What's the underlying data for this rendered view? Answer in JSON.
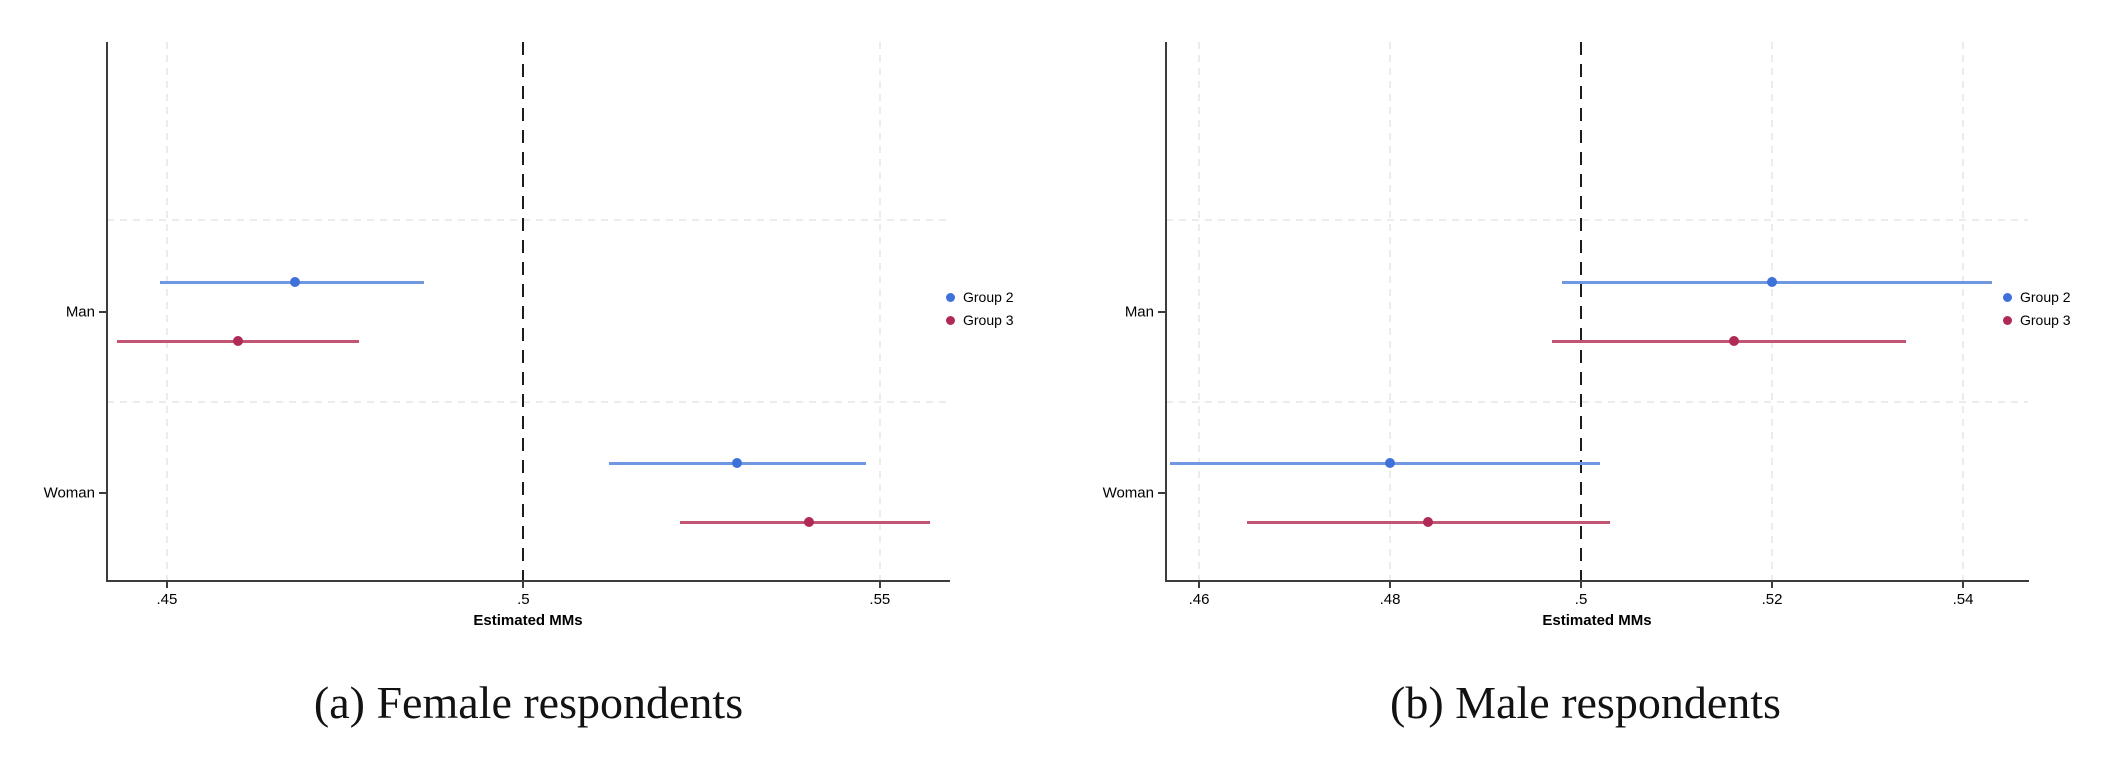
{
  "figure": {
    "background": "#ffffff",
    "refline_color": "#1c1c1c",
    "gridline_color": "#ececec"
  },
  "chart_data": [
    {
      "type": "scatter",
      "subtype": "horizontal-point-ci-coefplot",
      "caption": "(a) Female respondents",
      "title": "",
      "xlabel": "Estimated MMs",
      "ylabel": "",
      "categories": [
        "Man",
        "Woman"
      ],
      "xticks": [
        {
          "value": 0.45,
          "label": ".45"
        },
        {
          "value": 0.5,
          "label": ".5"
        },
        {
          "value": 0.55,
          "label": ".55"
        }
      ],
      "xlim": [
        0.4416,
        0.5597
      ],
      "refline": 0.5,
      "grid": true,
      "legend_position": "right",
      "series": [
        {
          "name": "Group 2",
          "marker_color": "#3e71d9",
          "line_color": "#6f97e2",
          "points": [
            {
              "category": "Man",
              "estimate": 0.468,
              "ci_low": 0.449,
              "ci_high": 0.486
            },
            {
              "category": "Woman",
              "estimate": 0.53,
              "ci_low": 0.512,
              "ci_high": 0.548
            }
          ]
        },
        {
          "name": "Group 3",
          "marker_color": "#b02a57",
          "line_color": "#c25672",
          "points": [
            {
              "category": "Man",
              "estimate": 0.46,
              "ci_low": 0.443,
              "ci_high": 0.477
            },
            {
              "category": "Woman",
              "estimate": 0.54,
              "ci_low": 0.522,
              "ci_high": 0.557
            }
          ]
        }
      ]
    },
    {
      "type": "scatter",
      "subtype": "horizontal-point-ci-coefplot",
      "caption": "(b) Male respondents",
      "title": "",
      "xlabel": "Estimated MMs",
      "ylabel": "",
      "categories": [
        "Man",
        "Woman"
      ],
      "xticks": [
        {
          "value": 0.46,
          "label": ".46"
        },
        {
          "value": 0.48,
          "label": ".48"
        },
        {
          "value": 0.5,
          "label": ".5"
        },
        {
          "value": 0.52,
          "label": ".52"
        },
        {
          "value": 0.54,
          "label": ".54"
        }
      ],
      "xlim": [
        0.45654,
        0.5468
      ],
      "refline": 0.5,
      "grid": true,
      "legend_position": "right",
      "series": [
        {
          "name": "Group 2",
          "marker_color": "#3e71d9",
          "line_color": "#6f97e2",
          "points": [
            {
              "category": "Man",
              "estimate": 0.52,
              "ci_low": 0.498,
              "ci_high": 0.543
            },
            {
              "category": "Woman",
              "estimate": 0.48,
              "ci_low": 0.457,
              "ci_high": 0.502
            }
          ]
        },
        {
          "name": "Group 3",
          "marker_color": "#b02a57",
          "line_color": "#c25672",
          "points": [
            {
              "category": "Man",
              "estimate": 0.516,
              "ci_low": 0.497,
              "ci_high": 0.534
            },
            {
              "category": "Woman",
              "estimate": 0.484,
              "ci_low": 0.465,
              "ci_high": 0.503
            }
          ]
        }
      ]
    }
  ]
}
